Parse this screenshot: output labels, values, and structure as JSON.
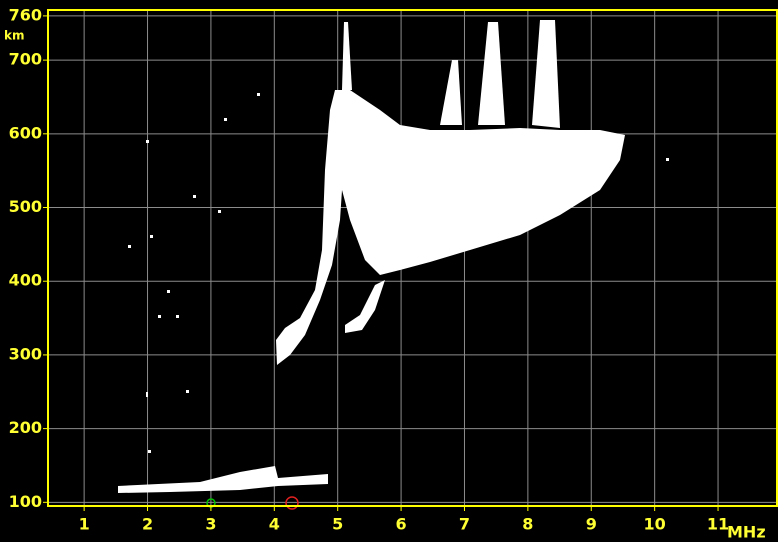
{
  "chart_data": {
    "type": "ionogram",
    "x_unit": "MHz",
    "y_unit": "km",
    "xlim": [
      0.43,
      11.93
    ],
    "xticks": [
      1,
      2,
      3,
      4,
      5,
      6,
      7,
      8,
      9,
      10,
      11
    ],
    "ylim": [
      95,
      768
    ],
    "yticks": [
      100,
      200,
      300,
      400,
      500,
      600,
      700,
      760
    ],
    "grid": true,
    "frame_color": "#ffff00",
    "grid_color": "#8c8c8c",
    "trace_color": "#ffffff"
  }
}
